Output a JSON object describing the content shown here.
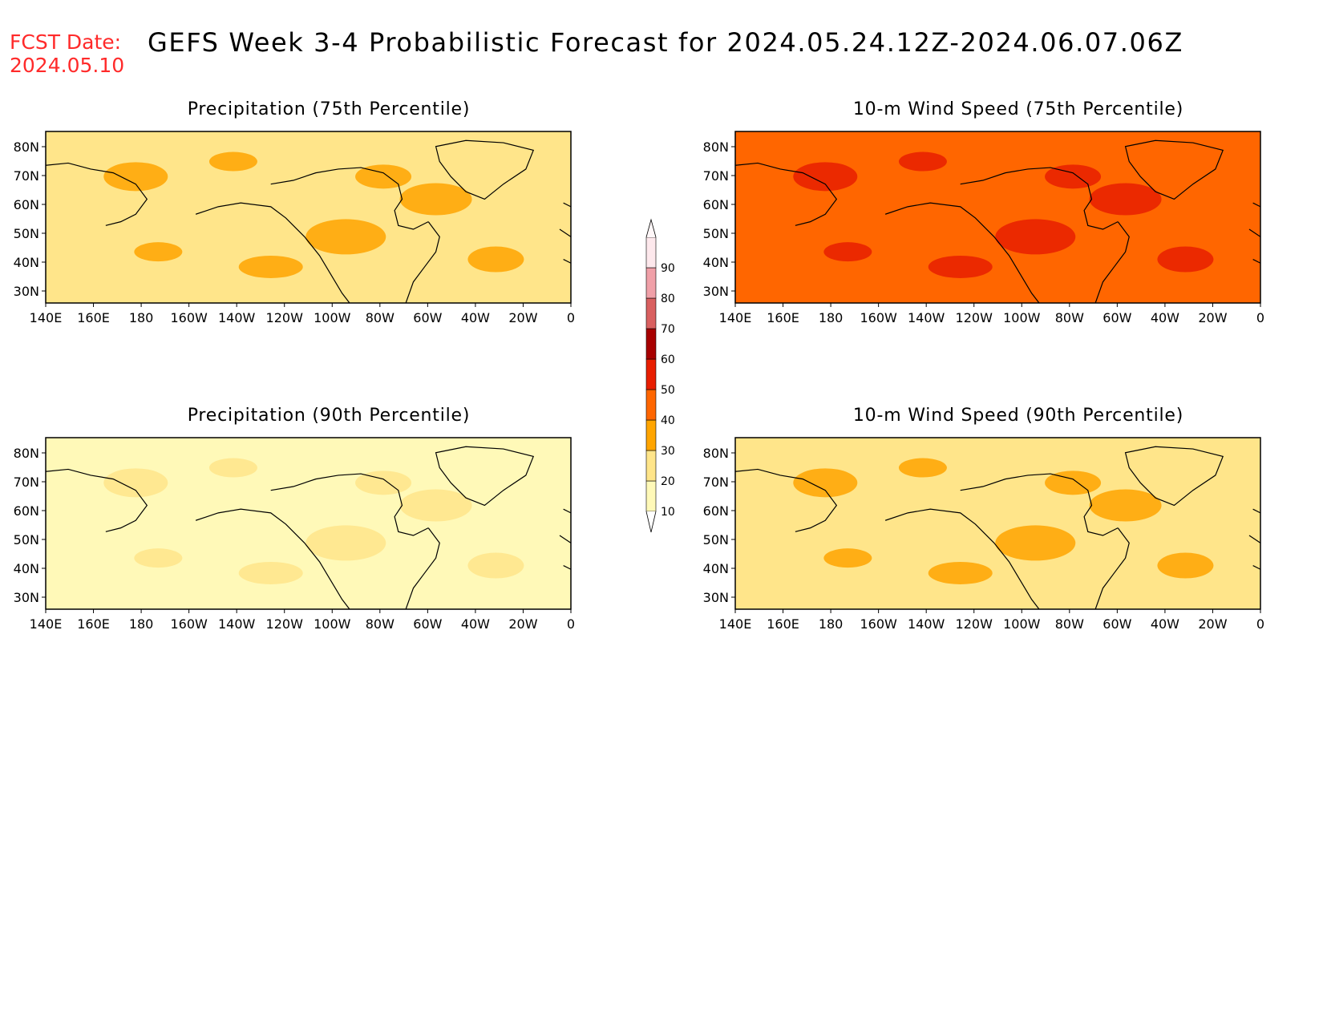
{
  "header": {
    "fcst_label": "FCST Date:",
    "fcst_date": "2024.05.10",
    "title": "GEFS Week 3-4 Probabilistic Forecast for 2024.05.24.12Z-2024.06.07.06Z"
  },
  "panels": [
    {
      "title": "Precipitation (75th Percentile)",
      "base_level": 20,
      "hot_level": 30
    },
    {
      "title": "10-m Wind Speed (75th Percentile)",
      "base_level": 40,
      "hot_level": 50
    },
    {
      "title": "Precipitation (90th Percentile)",
      "base_level": 10,
      "hot_level": 20
    },
    {
      "title": "10-m Wind Speed (90th Percentile)",
      "base_level": 20,
      "hot_level": 30
    }
  ],
  "axes": {
    "lat_labels": [
      "80N",
      "70N",
      "60N",
      "50N",
      "40N",
      "30N"
    ],
    "lon_labels": [
      "140E",
      "160E",
      "180",
      "160W",
      "140W",
      "120W",
      "100W",
      "80W",
      "60W",
      "40W",
      "20W",
      "0"
    ]
  },
  "colorbar": {
    "levels": [
      "10",
      "20",
      "30",
      "40",
      "50",
      "60",
      "70",
      "80",
      "90"
    ],
    "colors": [
      "#fff9b8",
      "#ffe58a",
      "#ffa500",
      "#ff6600",
      "#e81e00",
      "#a80000",
      "#d96060",
      "#f0a0a8",
      "#fde8ec"
    ]
  }
}
